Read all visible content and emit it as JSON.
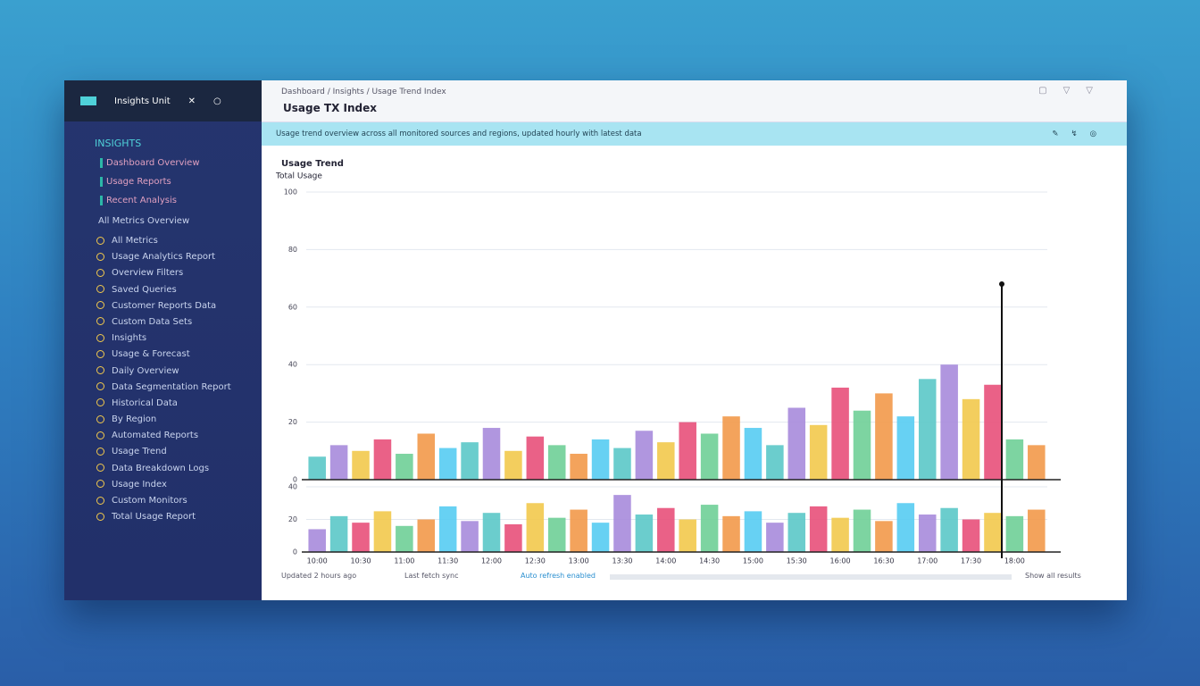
{
  "sidebar": {
    "brand": "Insights Unit",
    "section": "INSIGHTS",
    "links": [
      "Dashboard Overview",
      "Usage Reports",
      "Recent Analysis"
    ],
    "group": "All Metrics Overview",
    "items": [
      "All Metrics",
      "Usage Analytics Report",
      "Overview Filters",
      "Saved Queries",
      "Customer Reports Data",
      "Custom Data Sets",
      "Insights",
      "Usage & Forecast",
      "Daily Overview",
      "Data Segmentation Report",
      "Historical Data",
      "By Region",
      "Automated Reports",
      "Usage Trend",
      "Data Breakdown Logs",
      "Usage Index",
      "Custom Monitors",
      "Total Usage Report"
    ]
  },
  "window": {
    "breadcrumb": "Dashboard / Insights / Usage Trend Index",
    "heading": "Usage TX Index",
    "banner": "Usage trend overview across all monitored sources and regions, updated hourly with latest data"
  },
  "chart_data": [
    {
      "type": "bar",
      "title": "Usage Trend",
      "y_label": "Total Usage",
      "categories": [
        "10:00",
        null,
        "10:30",
        null,
        "11:00",
        null,
        "11:30",
        null,
        "12:00",
        null,
        "12:30",
        null,
        "13:00",
        null,
        "13:30",
        null,
        "14:00",
        null,
        "14:30",
        null,
        "15:00",
        null,
        "15:30",
        null,
        "16:00",
        null,
        "16:30",
        null,
        "17:00",
        null,
        "17:30",
        null,
        "18:00",
        null
      ],
      "values": [
        8,
        12,
        10,
        14,
        9,
        16,
        11,
        13,
        18,
        10,
        15,
        12,
        9,
        14,
        11,
        17,
        13,
        20,
        16,
        22,
        18,
        12,
        25,
        19,
        32,
        24,
        30,
        22,
        35,
        40,
        28,
        33,
        14,
        12
      ],
      "colors": [
        "#5bc8c8",
        "#a78bdb",
        "#f2c94c",
        "#e8507a",
        "#6fcf97",
        "#f2994a",
        "#56ccf2"
      ],
      "ylim": [
        0,
        100
      ],
      "yticks": [
        0,
        20,
        40,
        60,
        80,
        100
      ],
      "grid": true
    },
    {
      "type": "bar",
      "categories": [
        "10:00",
        null,
        "10:30",
        null,
        "11:00",
        null,
        "11:30",
        null,
        "12:00",
        null,
        "12:30",
        null,
        "13:00",
        null,
        "13:30",
        null,
        "14:00",
        null,
        "14:30",
        null,
        "15:00",
        null,
        "15:30",
        null,
        "16:00",
        null,
        "16:30",
        null,
        "17:00",
        null,
        "17:30",
        null,
        "18:00",
        null
      ],
      "values": [
        14,
        22,
        18,
        25,
        16,
        20,
        28,
        19,
        24,
        17,
        30,
        21,
        26,
        18,
        35,
        23,
        27,
        20,
        29,
        22,
        25,
        18,
        24,
        28,
        21,
        26,
        19,
        30,
        23,
        27,
        20,
        24,
        22,
        26
      ],
      "colors": [
        "#a78bdb",
        "#5bc8c8",
        "#e8507a",
        "#f2c94c",
        "#6fcf97",
        "#f2994a",
        "#56ccf2"
      ],
      "ylim": [
        0,
        40
      ],
      "yticks": [
        0,
        20,
        40
      ],
      "grid": true
    }
  ],
  "footer": {
    "left": "Updated 2 hours ago",
    "middle": "Last fetch sync",
    "status": "Auto refresh enabled",
    "right": "Show all results"
  }
}
